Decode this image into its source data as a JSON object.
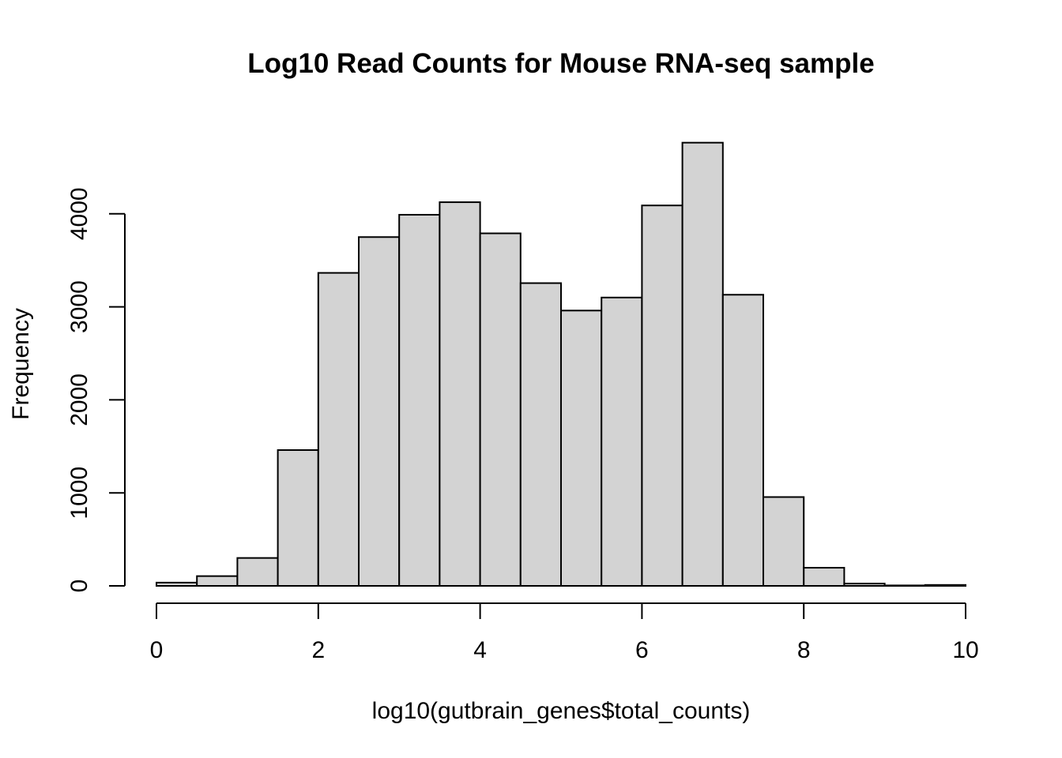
{
  "chart_data": {
    "type": "bar",
    "title": "Log10 Read Counts for Mouse RNA-seq sample",
    "xlabel": "log10(gutbrain_genes$total_counts)",
    "ylabel": "Frequency",
    "bin_edges": [
      0,
      0.5,
      1,
      1.5,
      2,
      2.5,
      3,
      3.5,
      4,
      4.5,
      5,
      5.5,
      6,
      6.5,
      7,
      7.5,
      8,
      8.5,
      9,
      9.5,
      10
    ],
    "values": [
      35,
      105,
      300,
      1460,
      3365,
      3750,
      3990,
      4125,
      3790,
      3255,
      2960,
      3100,
      4090,
      4765,
      3130,
      955,
      195,
      25,
      5,
      10
    ],
    "xlim": [
      0,
      10
    ],
    "ylim": [
      0,
      4765
    ],
    "x_ticks": [
      "0",
      "2",
      "4",
      "6",
      "8",
      "10"
    ],
    "y_ticks": [
      "0",
      "1000",
      "2000",
      "3000",
      "4000"
    ],
    "colors": {
      "bar_fill": "#d3d3d3",
      "bar_stroke": "#000000"
    },
    "grid": false,
    "legend": "none"
  }
}
